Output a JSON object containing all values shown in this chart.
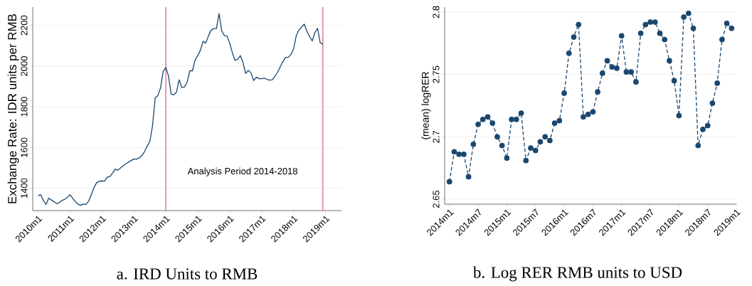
{
  "chart_data": [
    {
      "type": "line",
      "title": "a. IRD Units to RMB",
      "ylabel": "Exchange Rate: IDR units per RMB",
      "annotations": [
        "Analysis Period 2014-2018"
      ],
      "color": "#1a476f",
      "line_style": "solid",
      "grid": "y",
      "x": [
        "2010-01",
        "2010-02",
        "2010-03",
        "2010-04",
        "2010-05",
        "2010-06",
        "2010-07",
        "2010-08",
        "2010-09",
        "2010-10",
        "2010-11",
        "2010-12",
        "2011-01",
        "2011-02",
        "2011-03",
        "2011-04",
        "2011-05",
        "2011-06",
        "2011-07",
        "2011-08",
        "2011-09",
        "2011-10",
        "2011-11",
        "2011-12",
        "2012-01",
        "2012-02",
        "2012-03",
        "2012-04",
        "2012-05",
        "2012-06",
        "2012-07",
        "2012-08",
        "2012-09",
        "2012-10",
        "2012-11",
        "2012-12",
        "2013-01",
        "2013-02",
        "2013-03",
        "2013-04",
        "2013-05",
        "2013-06",
        "2013-07",
        "2013-08",
        "2013-09",
        "2013-10",
        "2013-11",
        "2013-12",
        "2014-01",
        "2014-02",
        "2014-03",
        "2014-04",
        "2014-05",
        "2014-06",
        "2014-07",
        "2014-08",
        "2014-09",
        "2014-10",
        "2014-11",
        "2014-12",
        "2015-01",
        "2015-02",
        "2015-03",
        "2015-04",
        "2015-05",
        "2015-06",
        "2015-07",
        "2015-08",
        "2015-09",
        "2015-10",
        "2015-11",
        "2015-12",
        "2016-01",
        "2016-02",
        "2016-03",
        "2016-04",
        "2016-05",
        "2016-06",
        "2016-07",
        "2016-08",
        "2016-09",
        "2016-10",
        "2016-11",
        "2016-12",
        "2017-01",
        "2017-02",
        "2017-03",
        "2017-04",
        "2017-05",
        "2017-06",
        "2017-07",
        "2017-08",
        "2017-09",
        "2017-10",
        "2017-11",
        "2017-12",
        "2018-01",
        "2018-02",
        "2018-03",
        "2018-04",
        "2018-05",
        "2018-06",
        "2018-07",
        "2018-08",
        "2018-09",
        "2018-10",
        "2018-11",
        "2018-12"
      ],
      "values": [
        1363,
        1368,
        1340,
        1320,
        1351,
        1342,
        1334,
        1324,
        1330,
        1340,
        1345,
        1355,
        1368,
        1351,
        1334,
        1322,
        1316,
        1322,
        1320,
        1336,
        1368,
        1403,
        1427,
        1434,
        1436,
        1435,
        1455,
        1457,
        1475,
        1494,
        1488,
        1500,
        1510,
        1520,
        1528,
        1536,
        1544,
        1543,
        1549,
        1560,
        1580,
        1607,
        1630,
        1706,
        1843,
        1855,
        1892,
        1973,
        1993,
        1952,
        1863,
        1859,
        1872,
        1933,
        1895,
        1898,
        1921,
        1977,
        1977,
        2031,
        2052,
        2078,
        2122,
        2113,
        2148,
        2176,
        2185,
        2185,
        2258,
        2173,
        2150,
        2148,
        2113,
        2066,
        2028,
        2034,
        2052,
        2017,
        1964,
        1979,
        1967,
        1929,
        1946,
        1938,
        1938,
        1941,
        1935,
        1931,
        1933,
        1950,
        1970,
        1997,
        2022,
        2043,
        2043,
        2057,
        2084,
        2150,
        2177,
        2192,
        2206,
        2171,
        2145,
        2124,
        2165,
        2186,
        2115,
        2107
      ],
      "xlim": [
        "2009-11",
        "2019-07"
      ],
      "ylim": [
        1290,
        2290
      ],
      "yticks": [
        1400,
        1600,
        1800,
        2000,
        2200
      ],
      "xticks": [
        {
          "value": "2010-01",
          "label": "2010m1"
        },
        {
          "value": "2011-01",
          "label": "2011m1"
        },
        {
          "value": "2012-01",
          "label": "2012m1"
        },
        {
          "value": "2013-01",
          "label": "2013m1"
        },
        {
          "value": "2014-01",
          "label": "2014m1"
        },
        {
          "value": "2015-01",
          "label": "2015m1"
        },
        {
          "value": "2016-01",
          "label": "2016m1"
        },
        {
          "value": "2017-01",
          "label": "2017m1"
        },
        {
          "value": "2018-01",
          "label": "2018m1"
        },
        {
          "value": "2019-01",
          "label": "2019m1"
        }
      ],
      "ref_lines": [
        {
          "axis": "x",
          "value": "2014-01",
          "color": "#d23b61"
        },
        {
          "axis": "x",
          "value": "2018-12",
          "color": "#d23b61"
        }
      ]
    },
    {
      "type": "line",
      "title": "b. Log RER RMB units to USD",
      "ylabel": "(mean) logRER",
      "color": "#1a476f",
      "line_style": "dashed",
      "marker": "circle",
      "grid": "y",
      "x": [
        "2014-01",
        "2014-02",
        "2014-03",
        "2014-04",
        "2014-05",
        "2014-06",
        "2014-07",
        "2014-08",
        "2014-09",
        "2014-10",
        "2014-11",
        "2014-12",
        "2015-01",
        "2015-02",
        "2015-03",
        "2015-04",
        "2015-05",
        "2015-06",
        "2015-07",
        "2015-08",
        "2015-09",
        "2015-10",
        "2015-11",
        "2015-12",
        "2016-01",
        "2016-02",
        "2016-03",
        "2016-04",
        "2016-05",
        "2016-06",
        "2016-07",
        "2016-08",
        "2016-09",
        "2016-10",
        "2016-11",
        "2016-12",
        "2017-01",
        "2017-02",
        "2017-03",
        "2017-04",
        "2017-05",
        "2017-06",
        "2017-07",
        "2017-08",
        "2017-09",
        "2017-10",
        "2017-11",
        "2017-12",
        "2018-01",
        "2018-02",
        "2018-03",
        "2018-04",
        "2018-05",
        "2018-06",
        "2018-07",
        "2018-08",
        "2018-09",
        "2018-10",
        "2018-11",
        "2018-12"
      ],
      "values": [
        2.664,
        2.688,
        2.686,
        2.686,
        2.668,
        2.694,
        2.71,
        2.714,
        2.716,
        2.711,
        2.7,
        2.693,
        2.683,
        2.714,
        2.714,
        2.719,
        2.681,
        2.691,
        2.689,
        2.696,
        2.7,
        2.697,
        2.711,
        2.713,
        2.735,
        2.767,
        2.78,
        2.79,
        2.716,
        2.718,
        2.72,
        2.736,
        2.751,
        2.761,
        2.756,
        2.755,
        2.781,
        2.752,
        2.752,
        2.744,
        2.783,
        2.79,
        2.792,
        2.792,
        2.783,
        2.778,
        2.761,
        2.745,
        2.717,
        2.796,
        2.799,
        2.787,
        2.693,
        2.706,
        2.709,
        2.727,
        2.743,
        2.778,
        2.791,
        2.787
      ],
      "xlim": [
        "2013-12",
        "2019-01"
      ],
      "ylim": [
        2.646,
        2.804
      ],
      "yticks": [
        2.65,
        2.7,
        2.75,
        2.8
      ],
      "xticks": [
        {
          "value": "2014-01",
          "label": "2014m1"
        },
        {
          "value": "2014-07",
          "label": "2014m7"
        },
        {
          "value": "2015-01",
          "label": "2015m1"
        },
        {
          "value": "2015-07",
          "label": "2015m7"
        },
        {
          "value": "2016-01",
          "label": "2016m1"
        },
        {
          "value": "2016-07",
          "label": "2016m7"
        },
        {
          "value": "2017-01",
          "label": "2017m1"
        },
        {
          "value": "2017-07",
          "label": "2017m7"
        },
        {
          "value": "2018-01",
          "label": "2018m1"
        },
        {
          "value": "2018-07",
          "label": "2018m7"
        },
        {
          "value": "2019-01",
          "label": "2019m1"
        }
      ]
    }
  ]
}
